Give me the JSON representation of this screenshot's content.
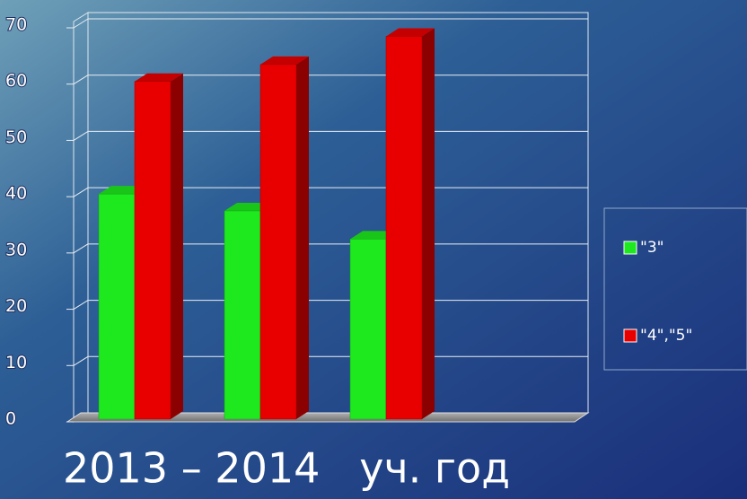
{
  "chart_data": {
    "type": "bar3d",
    "title": "2013 – 2014   уч. год",
    "categories": [
      null,
      null,
      null
    ],
    "series": [
      {
        "name": "\"3\"",
        "color": "#1ee81e",
        "values": [
          40,
          37,
          32
        ]
      },
      {
        "name": "\"4\",\"5\"",
        "color": "#e80000",
        "values": [
          60,
          63,
          68
        ]
      }
    ],
    "ylim": [
      0,
      70
    ],
    "yticks": [
      0,
      10,
      20,
      30,
      40,
      50,
      60,
      70
    ],
    "grid": true,
    "legend": "right"
  }
}
